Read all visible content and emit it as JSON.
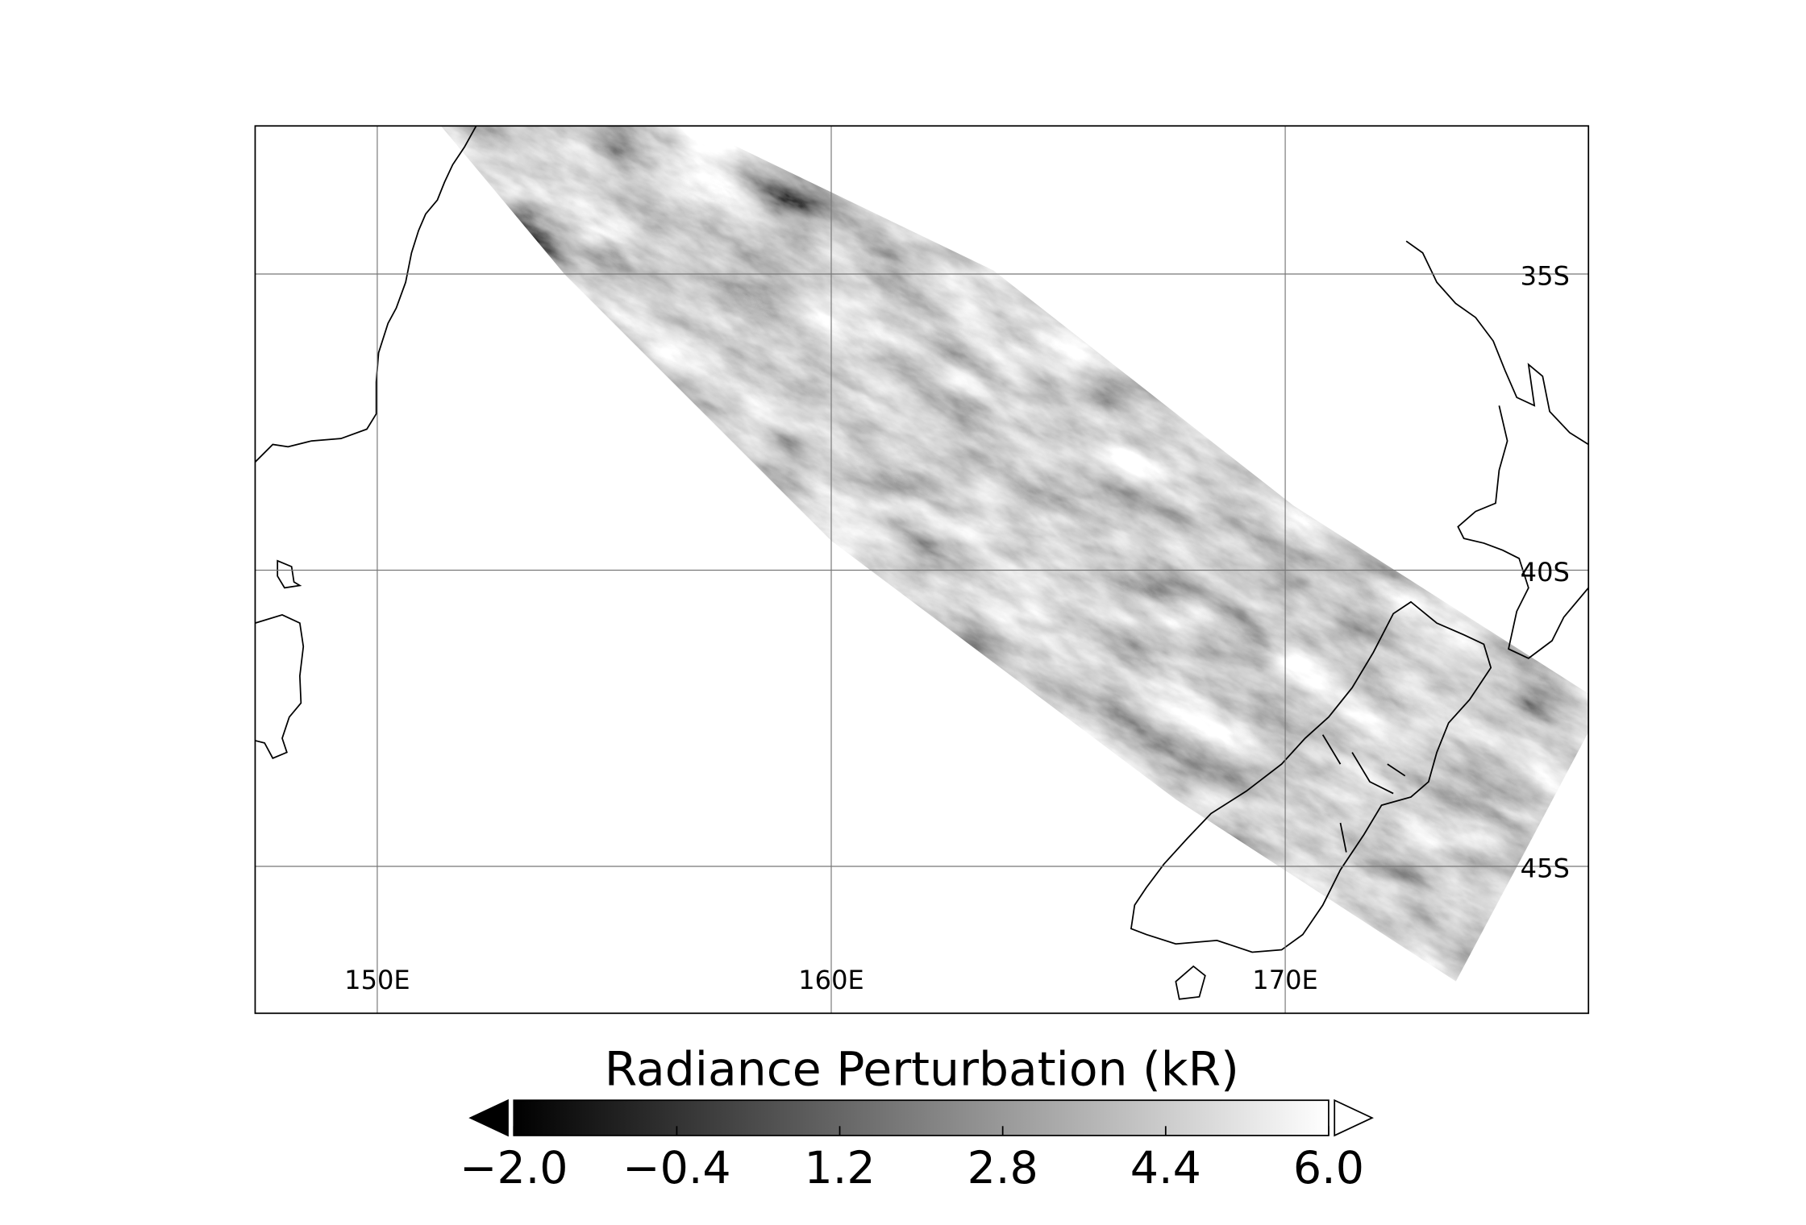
{
  "chart_data": {
    "type": "map",
    "lonlim": [
      147.31,
      176.68
    ],
    "latlim": [
      -32.5,
      -47.48
    ],
    "lonticks": [
      {
        "value": 150,
        "label": "150E"
      },
      {
        "value": 160,
        "label": "160E"
      },
      {
        "value": 170,
        "label": "170E"
      }
    ],
    "latticks": [
      {
        "value": -35,
        "label": "35S"
      },
      {
        "value": -40,
        "label": "40S"
      },
      {
        "value": -45,
        "label": "45S"
      }
    ],
    "grid": true,
    "colorbar": {
      "label": "Radiance Perturbation (kR)",
      "clim": [
        -2,
        6
      ],
      "colors": [
        "#000000",
        "#ffffff"
      ],
      "extend": "both",
      "ticks": [
        {
          "value": -2,
          "label": "−2.0"
        },
        {
          "value": -0.4,
          "label": "−0.4"
        },
        {
          "value": 1.2,
          "label": "1.2"
        },
        {
          "value": 2.8,
          "label": "2.8"
        },
        {
          "value": 4.4,
          "label": "4.4"
        },
        {
          "value": 6,
          "label": "6.0"
        }
      ]
    }
  }
}
